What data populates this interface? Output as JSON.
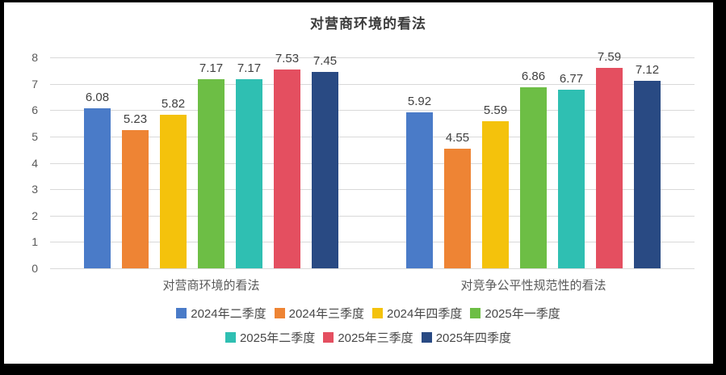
{
  "chart_data": {
    "type": "bar",
    "title": "对营商环境的看法",
    "categories": [
      "对营商环境的看法",
      "对竞争公平性规范性的看法"
    ],
    "series": [
      {
        "name": "2024年二季度",
        "color": "#4a7bc8",
        "values": [
          6.08,
          5.92
        ]
      },
      {
        "name": "2024年三季度",
        "color": "#ee8434",
        "values": [
          5.23,
          4.55
        ]
      },
      {
        "name": "2024年四季度",
        "color": "#f4c20c",
        "values": [
          5.82,
          5.59
        ]
      },
      {
        "name": "2025年一季度",
        "color": "#6dbe45",
        "values": [
          7.17,
          6.86
        ]
      },
      {
        "name": "2025年二季度",
        "color": "#2fbfb2",
        "values": [
          7.17,
          6.77
        ]
      },
      {
        "name": "2025年三季度",
        "color": "#e44f60",
        "values": [
          7.53,
          7.59
        ]
      },
      {
        "name": "2025年四季度",
        "color": "#294a83",
        "values": [
          7.45,
          7.12
        ]
      }
    ],
    "y_axis": {
      "min": 0,
      "max": 8,
      "step": 1,
      "ticks": [
        "0",
        "1",
        "2",
        "3",
        "4",
        "5",
        "6",
        "7",
        "8"
      ]
    },
    "ylim": [
      0,
      8
    ],
    "grid": true,
    "legend_position": "bottom",
    "legend_rows": [
      [
        0,
        1,
        2,
        3
      ],
      [
        4,
        5,
        6
      ]
    ],
    "colors": {
      "gridline": "#d9d9d9",
      "axis_text": "#595959",
      "data_label_text": "#404040",
      "title_text": "#3b3b3b",
      "frame": "#000000",
      "background": "#ffffff"
    }
  }
}
